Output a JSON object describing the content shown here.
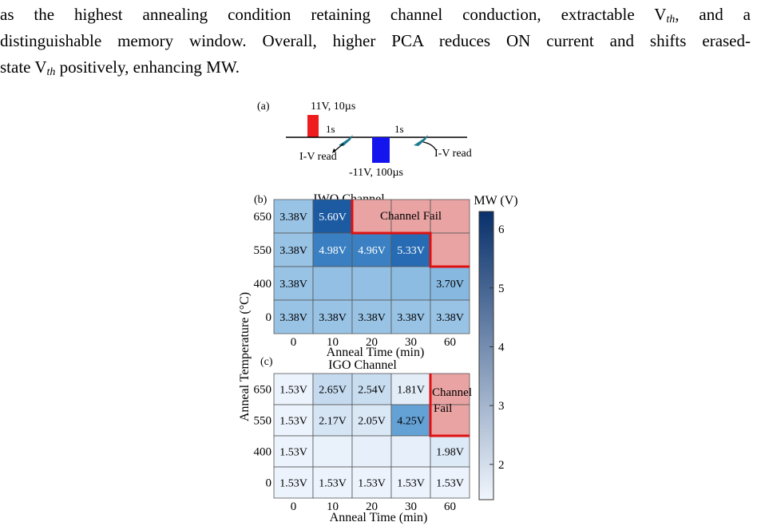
{
  "paragraph": {
    "line1_a": "as the highest annealing condition retaining channel conduction, extractable V",
    "line1_sub": "th",
    "line1_b": ", and a",
    "line2": "distinguishable memory window. Overall, higher PCA reduces ON current and shifts erased-",
    "line3_a": "state V",
    "line3_sub": "th",
    "line3_b": " positively, enhancing MW."
  },
  "figure": {
    "panel_a": {
      "label": "(a)",
      "program_pulse": "11V, 10µs",
      "erase_pulse": "-11V, 100µs",
      "delay1": "1s",
      "delay2": "1s",
      "read1": "I-V read",
      "read2": "I-V read",
      "program_color": "#ee1c1c",
      "erase_color": "#1414ee"
    },
    "colorbar": {
      "title": "MW (V)",
      "min": 1.4,
      "max": 6.3,
      "ticks": [
        "6",
        "5",
        "4",
        "3",
        "2"
      ],
      "low_color": "#f0f6fd",
      "high_color": "#08306b"
    },
    "shared": {
      "ylabel": "Anneal Temperature (°C)",
      "xlabel": "Anneal Time (min)",
      "fail_color": "#eaa3a3",
      "fail_border": "#e01010"
    }
  },
  "chart_data": [
    {
      "type": "heatmap",
      "panel": "(b)",
      "title": "IWO Channel",
      "x": [
        "0",
        "10",
        "20",
        "30",
        "60"
      ],
      "y": [
        "650",
        "550",
        "400",
        "0"
      ],
      "xlabel": "Anneal Time (min)",
      "ylabel": "Anneal Temperature (°C)",
      "fail_label": "Channel Fail",
      "rows": [
        {
          "temp": "650",
          "cells": [
            {
              "v": 3.38,
              "label": "3.38V"
            },
            {
              "v": 5.6,
              "label": "5.60V"
            },
            {
              "fail": true
            },
            {
              "fail": true
            },
            {
              "fail": true
            }
          ]
        },
        {
          "temp": "550",
          "cells": [
            {
              "v": 3.38,
              "label": "3.38V"
            },
            {
              "v": 4.98,
              "label": "4.98V"
            },
            {
              "v": 4.96,
              "label": "4.96V"
            },
            {
              "v": 5.33,
              "label": "5.33V"
            },
            {
              "fail": true
            }
          ]
        },
        {
          "temp": "400",
          "cells": [
            {
              "v": 3.38,
              "label": "3.38V"
            },
            {
              "v": 3.5,
              "label": ""
            },
            {
              "v": 3.5,
              "label": ""
            },
            {
              "v": 3.6,
              "label": ""
            },
            {
              "v": 3.7,
              "label": "3.70V"
            }
          ]
        },
        {
          "temp": "0",
          "cells": [
            {
              "v": 3.38,
              "label": "3.38V"
            },
            {
              "v": 3.38,
              "label": "3.38V"
            },
            {
              "v": 3.38,
              "label": "3.38V"
            },
            {
              "v": 3.38,
              "label": "3.38V"
            },
            {
              "v": 3.38,
              "label": "3.38V"
            }
          ]
        }
      ]
    },
    {
      "type": "heatmap",
      "panel": "(c)",
      "title": "IGO Channel",
      "x": [
        "0",
        "10",
        "20",
        "30",
        "60"
      ],
      "y": [
        "650",
        "550",
        "400",
        "0"
      ],
      "xlabel": "Anneal Time (min)",
      "ylabel": "Anneal Temperature (°C)",
      "fail_label_line1": "Channel",
      "fail_label_line2": "Fail",
      "rows": [
        {
          "temp": "650",
          "cells": [
            {
              "v": 1.53,
              "label": "1.53V"
            },
            {
              "v": 2.65,
              "label": "2.65V"
            },
            {
              "v": 2.54,
              "label": "2.54V"
            },
            {
              "v": 1.81,
              "label": "1.81V"
            },
            {
              "fail": true
            }
          ]
        },
        {
          "temp": "550",
          "cells": [
            {
              "v": 1.53,
              "label": "1.53V"
            },
            {
              "v": 2.17,
              "label": "2.17V"
            },
            {
              "v": 2.05,
              "label": "2.05V"
            },
            {
              "v": 4.25,
              "label": "4.25V"
            },
            {
              "fail": true
            }
          ]
        },
        {
          "temp": "400",
          "cells": [
            {
              "v": 1.53,
              "label": "1.53V"
            },
            {
              "v": 1.6,
              "label": ""
            },
            {
              "v": 1.65,
              "label": ""
            },
            {
              "v": 1.7,
              "label": ""
            },
            {
              "v": 1.98,
              "label": "1.98V"
            }
          ]
        },
        {
          "temp": "0",
          "cells": [
            {
              "v": 1.53,
              "label": "1.53V"
            },
            {
              "v": 1.53,
              "label": "1.53V"
            },
            {
              "v": 1.53,
              "label": "1.53V"
            },
            {
              "v": 1.53,
              "label": "1.53V"
            },
            {
              "v": 1.53,
              "label": "1.53V"
            }
          ]
        }
      ]
    }
  ]
}
